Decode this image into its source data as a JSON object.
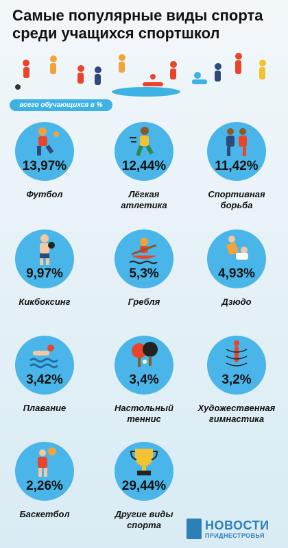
{
  "title": "Самые популярные виды спорта среди учащихся спортшкол",
  "subtitle": "всего обучающихся в %",
  "chart_data": {
    "type": "bar",
    "title": "Самые популярные виды спорта среди учащихся спортшкол",
    "subtitle": "всего обучающихся в %",
    "unit": "%",
    "categories": [
      "Футбол",
      "Лёгкая атлетика",
      "Спортивная борьба",
      "Кикбоксинг",
      "Гребля",
      "Дзюдо",
      "Плавание",
      "Настольный теннис",
      "Художественная гимнастика",
      "Баскетбол",
      "Другие виды спорта"
    ],
    "values": [
      13.97,
      12.44,
      11.42,
      9.97,
      5.3,
      4.93,
      3.42,
      3.4,
      3.2,
      2.26,
      29.44
    ]
  },
  "cards": [
    {
      "value_text": "13,97%",
      "label_lines": [
        "Футбол"
      ],
      "icon": "football-icon"
    },
    {
      "value_text": "12,44%",
      "label_lines": [
        "Лёгкая",
        "атлетика"
      ],
      "icon": "running-icon"
    },
    {
      "value_text": "11,42%",
      "label_lines": [
        "Спортивная",
        "борьба"
      ],
      "icon": "wrestling-icon"
    },
    {
      "value_text": "9,97%",
      "label_lines": [
        "Кикбоксинг"
      ],
      "icon": "kickboxing-icon"
    },
    {
      "value_text": "5,3%",
      "label_lines": [
        "Гребля"
      ],
      "icon": "rowing-icon"
    },
    {
      "value_text": "4,93%",
      "label_lines": [
        "Дзюдо"
      ],
      "icon": "judo-icon"
    },
    {
      "value_text": "3,42%",
      "label_lines": [
        "Плавание"
      ],
      "icon": "swimming-icon"
    },
    {
      "value_text": "3,4%",
      "label_lines": [
        "Настольный",
        "теннис"
      ],
      "icon": "table-tennis-icon"
    },
    {
      "value_text": "3,2%",
      "label_lines": [
        "Художественная",
        "гимнастика"
      ],
      "icon": "gymnastics-icon"
    },
    {
      "value_text": "2,26%",
      "label_lines": [
        "Баскетбол"
      ],
      "icon": "basketball-icon"
    },
    {
      "value_text": "29,44%",
      "label_lines": [
        "Другие виды",
        "спорта"
      ],
      "icon": "trophy-icon"
    }
  ],
  "logo": {
    "main": "НОВОСТИ",
    "sub": "ПРИДНЕСТРОВЬЯ"
  },
  "colors": {
    "accent": "#4ab5e8",
    "pill": "#3fb2e4",
    "logo": "#2d7fb8"
  }
}
